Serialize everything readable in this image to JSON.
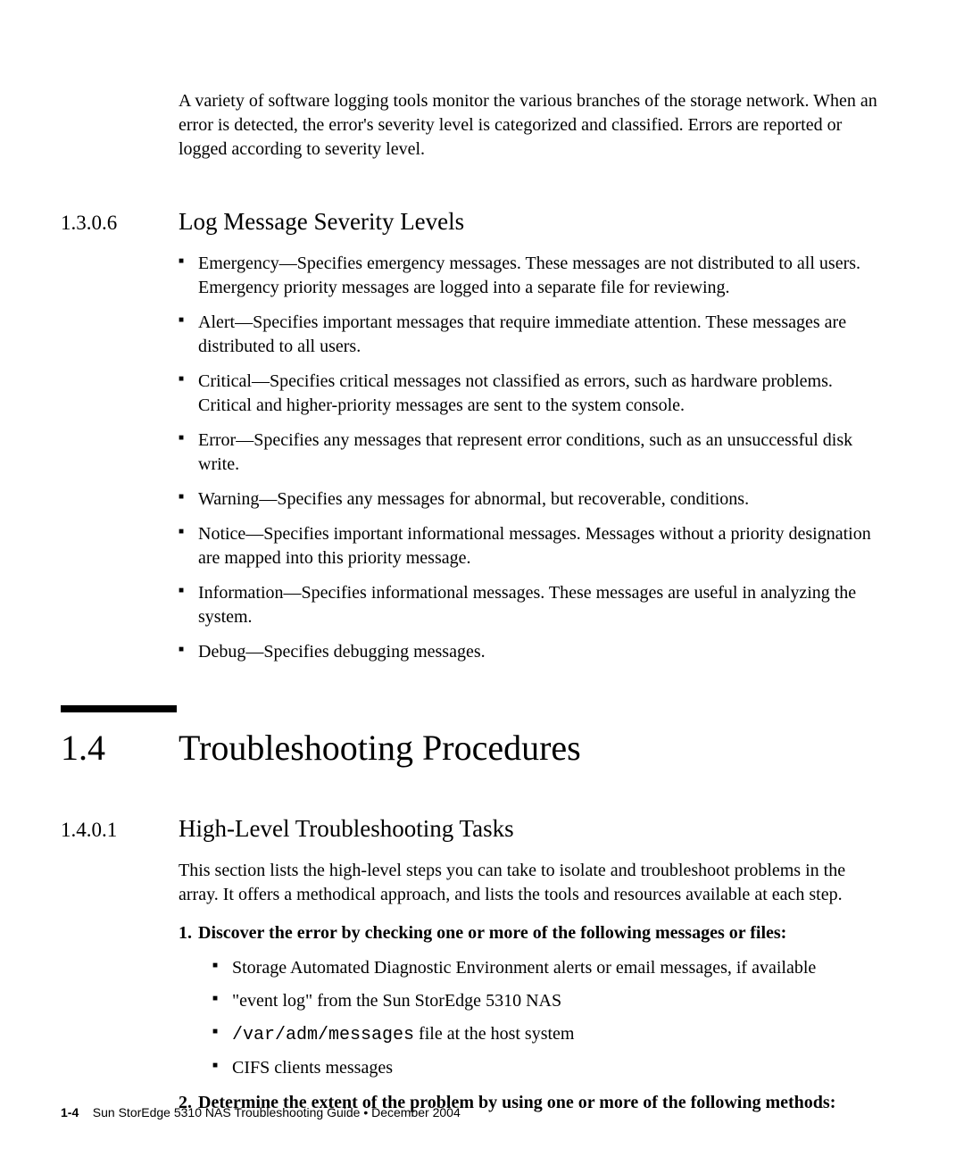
{
  "intro": "A variety of software logging tools monitor the various branches of the storage network. When an error is detected, the error's severity level is categorized and classified. Errors are reported or logged according to severity level.",
  "sub1": {
    "num": "1.3.0.6",
    "title": "Log Message Severity Levels",
    "items": [
      "Emergency—Specifies emergency messages. These messages are not distributed to all users. Emergency priority messages are logged into a separate file for reviewing.",
      "Alert—Specifies important messages that require immediate attention. These messages are distributed to all users.",
      "Critical—Specifies critical messages not classified as errors, such as hardware problems. Critical and higher-priority messages are sent to the system console.",
      "Error—Specifies any messages that represent error conditions, such as an unsuccessful disk write.",
      "Warning—Specifies any messages for abnormal, but recoverable, conditions.",
      "Notice—Specifies important informational messages. Messages without a priority designation are mapped into this priority message.",
      "Information—Specifies informational messages. These messages are useful in analyzing the system.",
      "Debug—Specifies debugging messages."
    ]
  },
  "section": {
    "num": "1.4",
    "title": "Troubleshooting Procedures"
  },
  "sub2": {
    "num": "1.4.0.1",
    "title": "High-Level Troubleshooting Tasks",
    "intro": "This section lists the high-level steps you can take to isolate and troubleshoot problems in the array. It offers a methodical approach, and lists the tools and resources available at each step.",
    "step1": {
      "num": "1.",
      "text": "Discover the error by checking one or more of the following messages or files:",
      "items": {
        "a": "Storage Automated Diagnostic Environment alerts or email messages, if available",
        "b_pre": "\"event log\" from the Sun StorEdge 5310 NAS",
        "c_mono": "/var/adm/messages",
        "c_post": " file at the host system",
        "d": "CIFS clients messages"
      }
    },
    "step2": {
      "num": "2.",
      "text": "Determine the extent of the problem by using one or more of the following methods:"
    }
  },
  "footer": {
    "pagenum": "1-4",
    "text": "Sun StorEdge 5310 NAS Troubleshooting Guide • December 2004"
  }
}
